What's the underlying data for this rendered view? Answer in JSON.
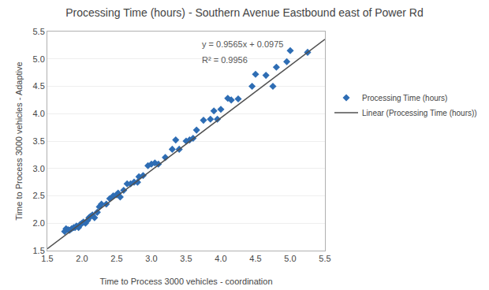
{
  "chart_data": {
    "type": "scatter",
    "title": "Processing Time (hours) - Southern Avenue Eastbound east of Power Rd",
    "x_label": "Time to Process 3000 vehicles - coordination",
    "y_label": "Time to Process 3000 vehicles - Adaptive",
    "xlim": [
      1.5,
      5.5
    ],
    "ylim": [
      1.5,
      5.5
    ],
    "xticks": [
      1.5,
      {
        "value": 2.0,
        "label": "2.0"
      },
      2.5,
      {
        "value": 3.0,
        "label": "3.0"
      },
      3.5,
      {
        "value": 4.0,
        "label": "4.0"
      },
      4.5,
      {
        "value": 5.0,
        "label": "5.0"
      },
      5.5
    ],
    "yticks": [
      1.5,
      {
        "value": 2.0,
        "label": "2.0"
      },
      2.5,
      {
        "value": 3.0,
        "label": "3.0"
      },
      3.5,
      {
        "value": 4.0,
        "label": "4.0"
      },
      4.5,
      {
        "value": 5.0,
        "label": "5.0"
      },
      5.5
    ],
    "grid": true,
    "legend": "right",
    "annotations": [
      "y = 0.9565x + 0.0975",
      "R² = 0.9956"
    ],
    "series": [
      {
        "name": "Processing Time (hours)",
        "type": "scatter",
        "marker": "diamond",
        "color": "#2E6DB4",
        "x": [
          1.75,
          1.77,
          1.8,
          1.82,
          1.85,
          1.88,
          1.9,
          1.92,
          1.95,
          1.97,
          1.98,
          2.0,
          2.02,
          2.05,
          2.08,
          2.1,
          2.12,
          2.15,
          2.18,
          2.22,
          2.25,
          2.28,
          2.35,
          2.4,
          2.45,
          2.5,
          2.52,
          2.55,
          2.6,
          2.65,
          2.7,
          2.75,
          2.8,
          2.82,
          2.88,
          2.95,
          3.0,
          3.05,
          3.1,
          3.2,
          3.3,
          3.35,
          3.4,
          3.5,
          3.55,
          3.6,
          3.65,
          3.75,
          3.85,
          3.9,
          3.95,
          4.0,
          4.1,
          4.15,
          4.25,
          4.45,
          4.5,
          4.65,
          4.75,
          4.8,
          4.95,
          5.0,
          5.25
        ],
        "values": [
          1.85,
          1.9,
          1.88,
          1.87,
          1.9,
          1.92,
          1.92,
          1.95,
          1.92,
          1.97,
          1.98,
          2.0,
          2.02,
          2.0,
          2.05,
          2.1,
          2.12,
          2.15,
          2.1,
          2.2,
          2.3,
          2.35,
          2.35,
          2.45,
          2.5,
          2.52,
          2.55,
          2.48,
          2.6,
          2.72,
          2.72,
          2.75,
          2.75,
          2.85,
          2.87,
          3.05,
          3.08,
          3.1,
          3.08,
          3.2,
          3.35,
          3.52,
          3.35,
          3.5,
          3.52,
          3.55,
          3.7,
          3.88,
          3.9,
          4.05,
          3.9,
          4.08,
          4.28,
          4.25,
          4.27,
          4.5,
          4.72,
          4.7,
          4.5,
          4.85,
          4.95,
          5.15,
          5.12
        ]
      },
      {
        "name": "Linear (Processing Time (hours))",
        "type": "line",
        "line_style": "solid",
        "color": "#505050",
        "x": [
          1.5,
          5.5
        ],
        "values": [
          1.53225,
          5.35825
        ]
      }
    ]
  }
}
